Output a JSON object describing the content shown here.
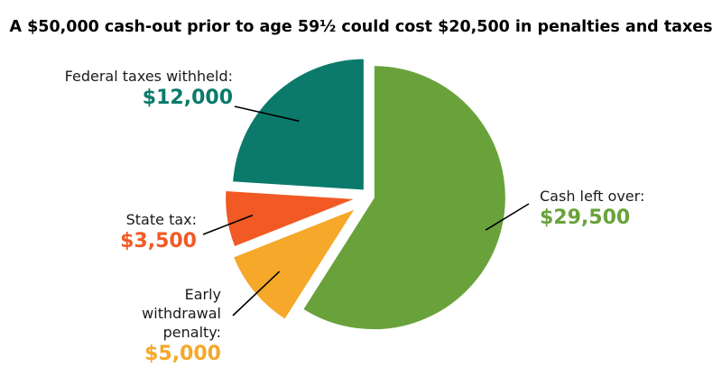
{
  "chart_data": {
    "type": "pie",
    "title": "A $50,000 cash-out prior to age 59½ could cost $20,500 in penalties and taxes",
    "slices": [
      {
        "name": "Cash left over:",
        "value": 29500,
        "amount": "$29,500",
        "color": "#69a23b"
      },
      {
        "name": "Early withdrawal penalty:",
        "value": 5000,
        "amount": "$5,000",
        "color": "#f5a82a"
      },
      {
        "name": "State tax:",
        "value": 3500,
        "amount": "$3,500",
        "color": "#f15a24"
      },
      {
        "name": "Federal taxes withheld:",
        "value": 12000,
        "amount": "$12,000",
        "color": "#0b7a6b"
      }
    ]
  }
}
